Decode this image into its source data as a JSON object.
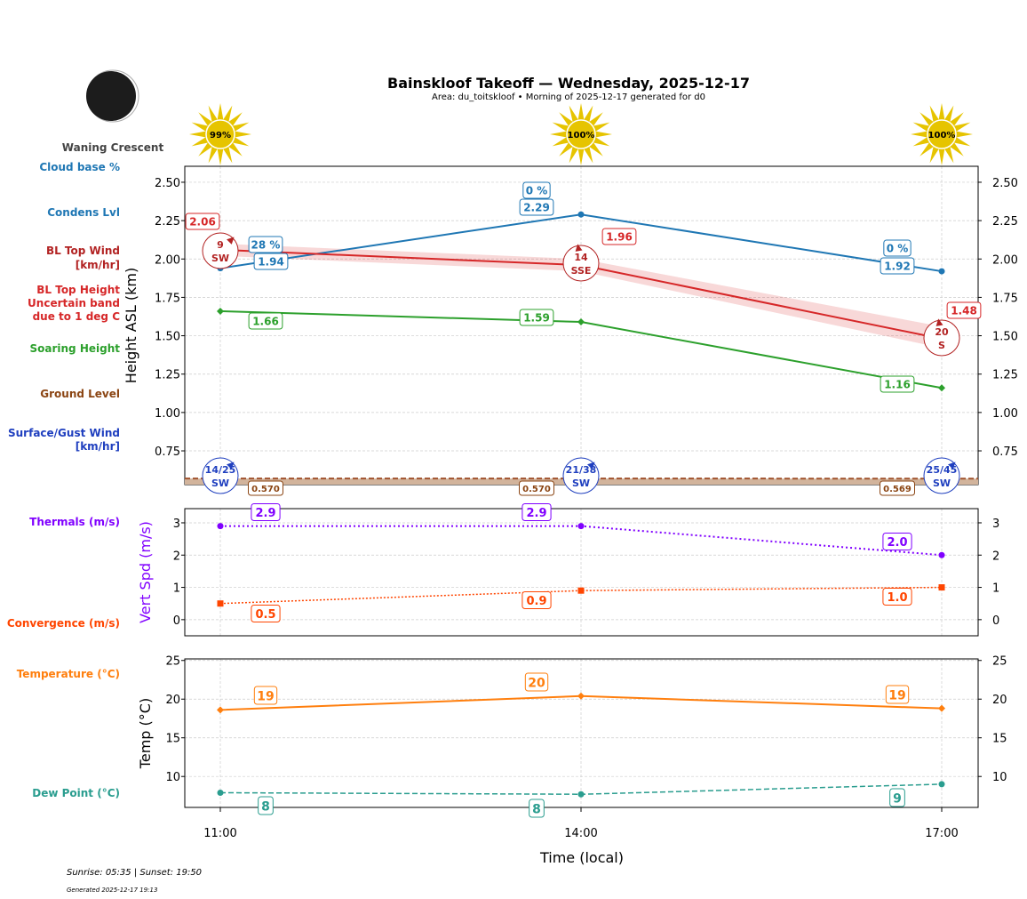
{
  "title": "Bainskloof Takeoff — Wednesday, 2025-12-17",
  "subtitle": "Area: du_toitskloof • Morning of 2025-12-17 generated for d0",
  "moon": {
    "phase": "Waning Crescent"
  },
  "sun": {
    "times": [
      "11:00",
      "14:00",
      "17:00"
    ],
    "values": [
      "99%",
      "100%",
      "100%"
    ]
  },
  "legend_labels": {
    "cloud": "Cloud base %",
    "condens": "Condens Lvl",
    "bltop": [
      "BL Top Wind",
      "[km/hr]"
    ],
    "band": [
      "BL Top Height",
      "Uncertain band",
      "due to 1 deg C"
    ],
    "soaring": "Soaring Height",
    "ground": "Ground Level",
    "surface": [
      "Surface/Gust Wind",
      "[km/hr]"
    ],
    "thermals": "Thermals (m/s)",
    "convergence": "Convergence (m/s)",
    "temp": "Temperature (°C)",
    "dew": "Dew Point (°C)"
  },
  "footer": {
    "sun": "Sunrise: 05:35 | Sunset: 19:50",
    "generated": "Generated 2025-12-17 19:13"
  },
  "chart_data": [
    {
      "type": "line",
      "ylabel": "Height ASL (km)",
      "ylim": [
        0.53,
        2.604
      ],
      "xlim": [
        "10:42",
        "17:18"
      ],
      "yticks": [
        0.75,
        1.0,
        1.25,
        1.5,
        1.75,
        2.0,
        2.25,
        2.5
      ],
      "grid": true,
      "x": [
        "11:00",
        "14:00",
        "17:00"
      ],
      "series": [
        {
          "name": "Condens Lvl",
          "color": "#1f77b4",
          "values": [
            1.94,
            2.29,
            1.92
          ],
          "cloud_pct": [
            "28 %",
            "0 %",
            "0 %"
          ]
        },
        {
          "name": "BL Top Height",
          "color": "#d62728",
          "values": [
            2.06,
            1.96,
            1.48
          ],
          "band": [
            [
              2.02,
              2.1
            ],
            [
              1.92,
              2.0
            ],
            [
              1.42,
              1.56
            ]
          ],
          "wind": [
            [
              "9",
              "SW"
            ],
            [
              "14",
              "SSE"
            ],
            [
              "20",
              "S"
            ]
          ]
        },
        {
          "name": "Soaring Height",
          "color": "#2ca02c",
          "values": [
            1.66,
            1.59,
            1.16
          ]
        },
        {
          "name": "Ground Level",
          "color": "#8b4513",
          "values": [
            0.57,
            0.57,
            0.569
          ],
          "labels": [
            "0.570",
            "0.570",
            "0.569"
          ]
        },
        {
          "name": "Surface/Gust Wind",
          "color": "#1f3fbf",
          "wind": [
            [
              "14/25",
              "SW"
            ],
            [
              "21/38",
              "SW"
            ],
            [
              "25/45",
              "SW"
            ]
          ]
        }
      ]
    },
    {
      "type": "line",
      "ylabel": "Vert Spd (m/s)",
      "ylim": [
        -0.5,
        3.44
      ],
      "yticks": [
        0,
        1,
        2,
        3
      ],
      "grid": true,
      "x": [
        "11:00",
        "14:00",
        "17:00"
      ],
      "series": [
        {
          "name": "Thermals (m/s)",
          "color": "#8000ff",
          "values": [
            2.9,
            2.9,
            2.0
          ]
        },
        {
          "name": "Convergence (m/s)",
          "color": "#ff4500",
          "values": [
            0.5,
            0.9,
            1.0
          ]
        }
      ]
    },
    {
      "type": "line",
      "ylabel": "Temp (°C)",
      "xlabel": "Time (local)",
      "ylim": [
        6.0,
        25.2
      ],
      "yticks": [
        10,
        15,
        20,
        25
      ],
      "grid": true,
      "x": [
        "11:00",
        "14:00",
        "17:00"
      ],
      "series": [
        {
          "name": "Temperature (°C)",
          "color": "#ff7f0e",
          "values": [
            18.6,
            20.4,
            18.8
          ],
          "labels": [
            "19",
            "20",
            "19"
          ]
        },
        {
          "name": "Dew Point (°C)",
          "color": "#2a9d8f",
          "values": [
            7.9,
            7.7,
            9.0
          ],
          "labels": [
            "8",
            "8",
            "9"
          ]
        }
      ]
    }
  ]
}
